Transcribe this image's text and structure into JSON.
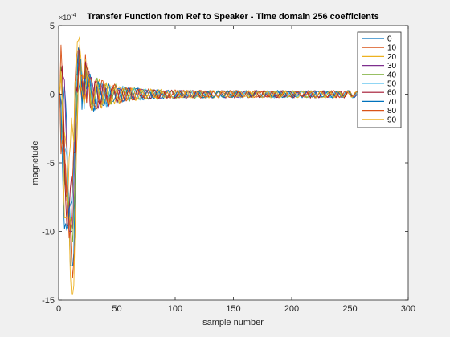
{
  "chart_data": {
    "type": "line",
    "title": "Transfer Function from Ref to Speaker - Time domain 256 coefficients",
    "xlabel": "sample number",
    "ylabel": "magnetude",
    "y_exponent_label": "×10",
    "y_exponent_power": "-4",
    "xlim": [
      0,
      300
    ],
    "ylim": [
      -15,
      5
    ],
    "x_ticks": [
      0,
      50,
      100,
      150,
      200,
      250,
      300
    ],
    "x_tick_labels": [
      "0",
      "50",
      "100",
      "150",
      "200",
      "250",
      "300"
    ],
    "y_ticks": [
      -15,
      -10,
      -5,
      0,
      5
    ],
    "y_tick_labels": [
      "-15",
      "-10",
      "-5",
      "0",
      "5"
    ],
    "legend_position": "top-right",
    "grid": false,
    "x_length": 256,
    "series": [
      {
        "name": "0",
        "color": "#0072BD",
        "min": -12.5,
        "max": 3.6
      },
      {
        "name": "10",
        "color": "#D95319",
        "min": -13.4,
        "max": 3.8
      },
      {
        "name": "20",
        "color": "#EDB120",
        "min": -14.6,
        "max": 4.6
      },
      {
        "name": "30",
        "color": "#7E2F8E",
        "min": -10.0,
        "max": 3.4
      },
      {
        "name": "40",
        "color": "#77AC30",
        "min": -11.2,
        "max": 3.2
      },
      {
        "name": "50",
        "color": "#4DBEEE",
        "min": -9.0,
        "max": 3.0
      },
      {
        "name": "60",
        "color": "#A2142F",
        "min": -9.6,
        "max": 3.6
      },
      {
        "name": "70",
        "color": "#0072BD",
        "min": -11.4,
        "max": 3.4
      },
      {
        "name": "80",
        "color": "#D95319",
        "min": -10.5,
        "max": 3.2
      },
      {
        "name": "90",
        "color": "#EDB120",
        "min": -9.0,
        "max": 4.2
      }
    ]
  }
}
